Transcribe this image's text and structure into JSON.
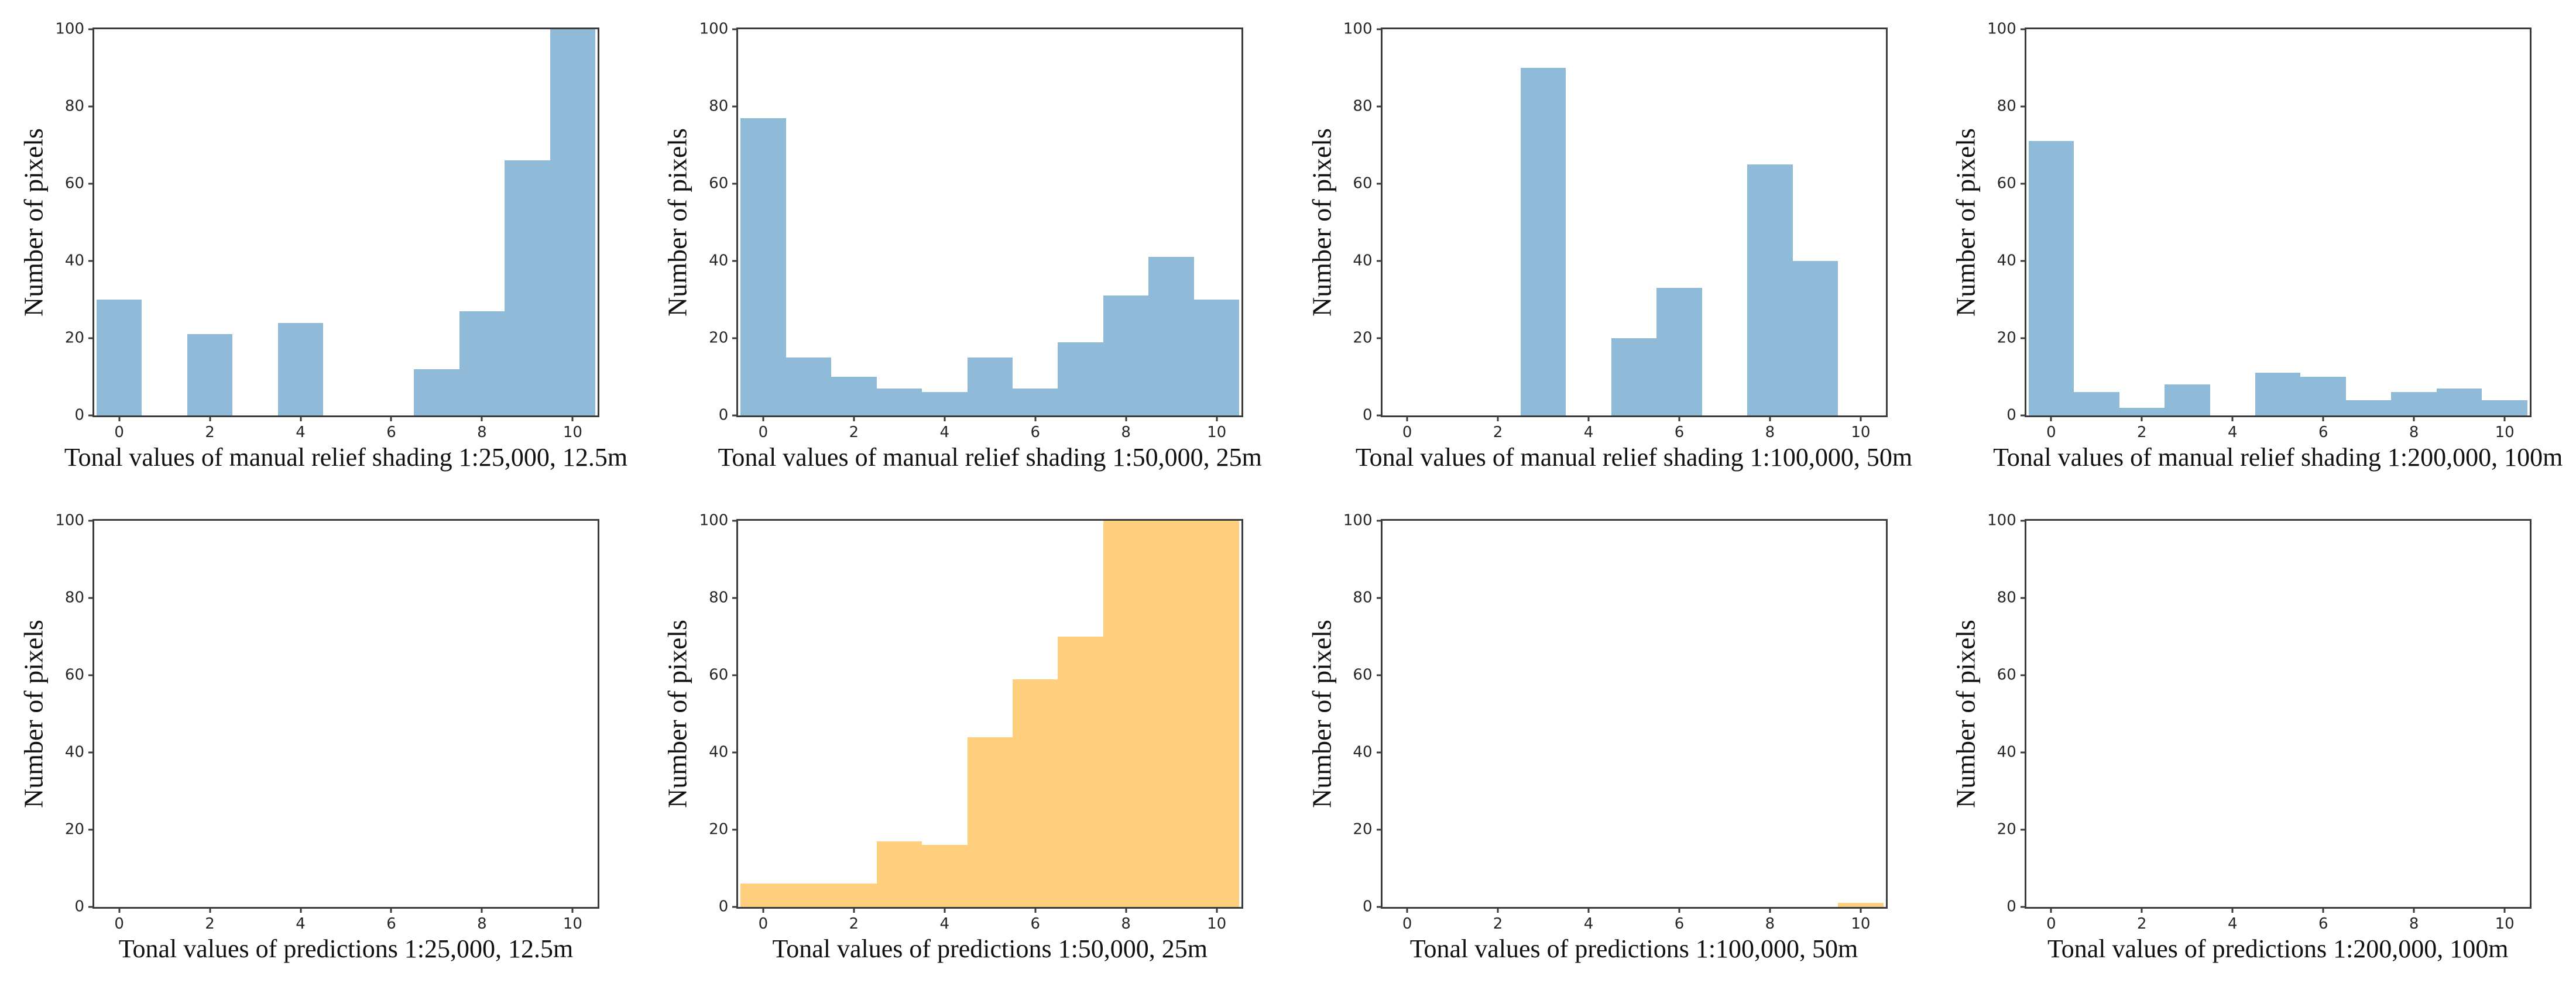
{
  "figure": {
    "rows": 2,
    "cols": 4,
    "background": "#ffffff",
    "axis_color": "#3b3b3b",
    "tick_color": "#262626",
    "label_color": "#111111",
    "bar_colors": {
      "manual": "#8FBBD9",
      "predictions": "#FFCF7D"
    }
  },
  "chart_data": [
    {
      "type": "bar",
      "series_role": "manual",
      "xlabel": "Tonal values of manual relief shading 1:25,000, 12.5m",
      "ylabel": "Number of pixels",
      "x": [
        0,
        1,
        2,
        3,
        4,
        5,
        6,
        7,
        8,
        9,
        10
      ],
      "values": [
        30,
        0,
        21,
        0,
        24,
        0,
        0,
        12,
        27,
        66,
        100
      ],
      "bar_width": 1,
      "color": "#8FBBD9",
      "xticks": [
        0,
        2,
        4,
        6,
        8,
        10
      ],
      "yticks": [
        0,
        20,
        40,
        60,
        80,
        100
      ],
      "xlim": [
        -0.55,
        10.55
      ],
      "ylim": [
        0,
        100
      ],
      "grid": false
    },
    {
      "type": "bar",
      "series_role": "manual",
      "xlabel": "Tonal values of manual relief shading 1:50,000, 25m",
      "ylabel": "Number of pixels",
      "x": [
        0,
        1,
        2,
        3,
        4,
        5,
        6,
        7,
        8,
        9,
        10
      ],
      "values": [
        77,
        15,
        10,
        7,
        6,
        15,
        7,
        19,
        31,
        41,
        30
      ],
      "bar_width": 1,
      "color": "#8FBBD9",
      "xticks": [
        0,
        2,
        4,
        6,
        8,
        10
      ],
      "yticks": [
        0,
        20,
        40,
        60,
        80,
        100
      ],
      "xlim": [
        -0.55,
        10.55
      ],
      "ylim": [
        0,
        100
      ],
      "grid": false
    },
    {
      "type": "bar",
      "series_role": "manual",
      "xlabel": "Tonal values of manual relief shading 1:100,000, 50m",
      "ylabel": "Number of pixels",
      "x": [
        0,
        1,
        2,
        3,
        4,
        5,
        6,
        7,
        8,
        9,
        10
      ],
      "values": [
        0,
        0,
        0,
        90,
        0,
        20,
        33,
        0,
        65,
        40,
        0
      ],
      "bar_width": 1,
      "color": "#8FBBD9",
      "xticks": [
        0,
        2,
        4,
        6,
        8,
        10
      ],
      "yticks": [
        0,
        20,
        40,
        60,
        80,
        100
      ],
      "xlim": [
        -0.55,
        10.55
      ],
      "ylim": [
        0,
        100
      ],
      "grid": false
    },
    {
      "type": "bar",
      "series_role": "manual",
      "xlabel": "Tonal values of manual relief shading 1:200,000, 100m",
      "ylabel": "Number of pixels",
      "x": [
        0,
        1,
        2,
        3,
        4,
        5,
        6,
        7,
        8,
        9,
        10
      ],
      "values": [
        71,
        6,
        2,
        8,
        0,
        11,
        10,
        4,
        6,
        7,
        4
      ],
      "bar_width": 1,
      "color": "#8FBBD9",
      "xticks": [
        0,
        2,
        4,
        6,
        8,
        10
      ],
      "yticks": [
        0,
        20,
        40,
        60,
        80,
        100
      ],
      "xlim": [
        -0.55,
        10.55
      ],
      "ylim": [
        0,
        100
      ],
      "grid": false
    },
    {
      "type": "bar",
      "series_role": "predictions",
      "xlabel": "Tonal values of predictions 1:25,000, 12.5m",
      "ylabel": "Number of pixels",
      "x": [
        0,
        1,
        2,
        3,
        4,
        5,
        6,
        7,
        8,
        9,
        10
      ],
      "values": [
        0,
        0,
        0,
        0,
        0,
        0,
        0,
        0,
        0,
        0,
        0
      ],
      "bar_width": 1,
      "color": "#FFCF7D",
      "xticks": [
        0,
        2,
        4,
        6,
        8,
        10
      ],
      "yticks": [
        0,
        20,
        40,
        60,
        80,
        100
      ],
      "xlim": [
        -0.55,
        10.55
      ],
      "ylim": [
        0,
        100
      ],
      "grid": false
    },
    {
      "type": "bar",
      "series_role": "predictions",
      "xlabel": "Tonal values of predictions 1:50,000, 25m",
      "ylabel": "Number of pixels",
      "x": [
        0,
        1,
        2,
        3,
        4,
        5,
        6,
        7,
        8,
        9,
        10
      ],
      "values": [
        6,
        6,
        6,
        17,
        16,
        44,
        59,
        70,
        100,
        100,
        100
      ],
      "bar_width": 1,
      "color": "#FFCF7D",
      "xticks": [
        0,
        2,
        4,
        6,
        8,
        10
      ],
      "yticks": [
        0,
        20,
        40,
        60,
        80,
        100
      ],
      "xlim": [
        -0.55,
        10.55
      ],
      "ylim": [
        0,
        100
      ],
      "grid": false
    },
    {
      "type": "bar",
      "series_role": "predictions",
      "xlabel": "Tonal values of predictions 1:100,000, 50m",
      "ylabel": "Number of pixels",
      "x": [
        0,
        1,
        2,
        3,
        4,
        5,
        6,
        7,
        8,
        9,
        10
      ],
      "values": [
        0,
        0,
        0,
        0,
        0,
        0,
        0,
        0,
        0,
        0,
        1
      ],
      "bar_width": 1,
      "color": "#FFCF7D",
      "xticks": [
        0,
        2,
        4,
        6,
        8,
        10
      ],
      "yticks": [
        0,
        20,
        40,
        60,
        80,
        100
      ],
      "xlim": [
        -0.55,
        10.55
      ],
      "ylim": [
        0,
        100
      ],
      "grid": false
    },
    {
      "type": "bar",
      "series_role": "predictions",
      "xlabel": "Tonal values of predictions 1:200,000, 100m",
      "ylabel": "Number of pixels",
      "x": [
        0,
        1,
        2,
        3,
        4,
        5,
        6,
        7,
        8,
        9,
        10
      ],
      "values": [
        0,
        0,
        0,
        0,
        0,
        0,
        0,
        0,
        0,
        0,
        0
      ],
      "bar_width": 1,
      "color": "#FFCF7D",
      "xticks": [
        0,
        2,
        4,
        6,
        8,
        10
      ],
      "yticks": [
        0,
        20,
        40,
        60,
        80,
        100
      ],
      "xlim": [
        -0.55,
        10.55
      ],
      "ylim": [
        0,
        100
      ],
      "grid": false
    }
  ]
}
